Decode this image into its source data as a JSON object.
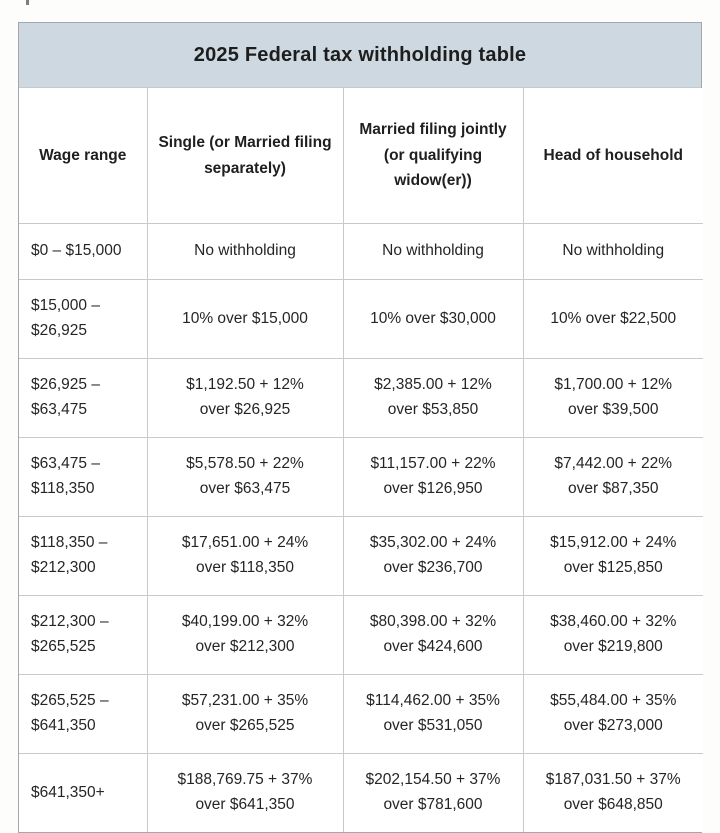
{
  "colors": {
    "title_bar_bg": "#cdd8e0",
    "inner_border": "#c6cacc",
    "outer_border": "#a2a8ab"
  },
  "table": {
    "title": "2025 Federal tax withholding table",
    "columns": [
      "Wage range",
      "Single (or Married filing separately)",
      "Married filing jointly (or qualifying widow(er))",
      "Head of household"
    ],
    "rows": [
      {
        "wage_range": "$0 – $15,000",
        "single": [
          "No withholding"
        ],
        "married_jointly": [
          "No withholding"
        ],
        "head_household": [
          "No withholding"
        ]
      },
      {
        "wage_range": "$15,000 – $26,925",
        "single": [
          "10% over $15,000"
        ],
        "married_jointly": [
          "10% over $30,000"
        ],
        "head_household": [
          "10% over $22,500"
        ]
      },
      {
        "wage_range": "$26,925 – $63,475",
        "single": [
          "$1,192.50 + 12%",
          "over $26,925"
        ],
        "married_jointly": [
          "$2,385.00 + 12%",
          "over $53,850"
        ],
        "head_household": [
          "$1,700.00 + 12%",
          "over $39,500"
        ]
      },
      {
        "wage_range": "$63,475 – $118,350",
        "single": [
          "$5,578.50 + 22%",
          "over $63,475"
        ],
        "married_jointly": [
          "$11,157.00 + 22%",
          "over $126,950"
        ],
        "head_household": [
          "$7,442.00 + 22%",
          "over $87,350"
        ]
      },
      {
        "wage_range": "$118,350 – $212,300",
        "single": [
          "$17,651.00 + 24%",
          "over $118,350"
        ],
        "married_jointly": [
          "$35,302.00 + 24%",
          "over $236,700"
        ],
        "head_household": [
          "$15,912.00 + 24%",
          "over $125,850"
        ]
      },
      {
        "wage_range": "$212,300 – $265,525",
        "single": [
          "$40,199.00 + 32%",
          "over $212,300"
        ],
        "married_jointly": [
          "$80,398.00 + 32%",
          "over $424,600"
        ],
        "head_household": [
          "$38,460.00 + 32%",
          "over $219,800"
        ]
      },
      {
        "wage_range": "$265,525 – $641,350",
        "single": [
          "$57,231.00 + 35%",
          "over $265,525"
        ],
        "married_jointly": [
          "$114,462.00 + 35%",
          "over $531,050"
        ],
        "head_household": [
          "$55,484.00 + 35%",
          "over $273,000"
        ]
      },
      {
        "wage_range": "$641,350+",
        "single": [
          "$188,769.75 + 37%",
          "over $641,350"
        ],
        "married_jointly": [
          "$202,154.50 + 37%",
          "over $781,600"
        ],
        "head_household": [
          "$187,031.50 + 37%",
          "over $648,850"
        ]
      }
    ]
  }
}
